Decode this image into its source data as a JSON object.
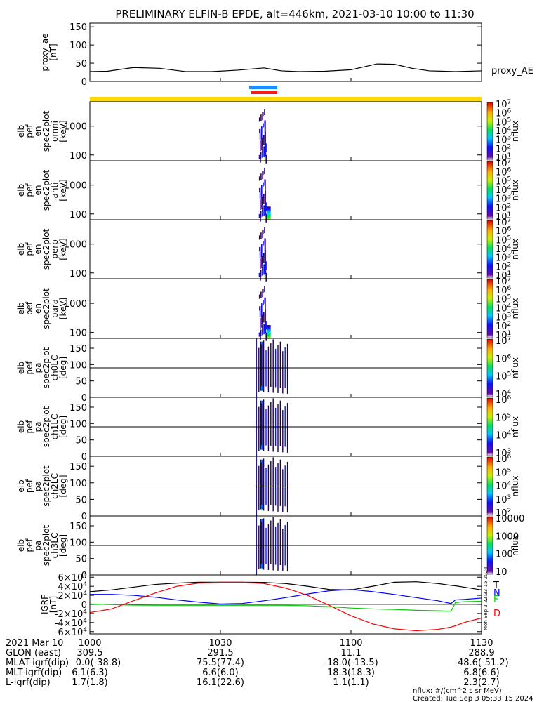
{
  "title": "PRELIMINARY ELFIN-B EPDE, alt=446km, 2021-03-10 10:00 to 11:30",
  "footer": {
    "units": "nflux: #/(cm^2 s sr MeV)",
    "created": "Created: Tue Sep  3 05:33:15 2024",
    "side_stamp": "Mon Sep  2 22:33:15 2024"
  },
  "colors": {
    "status_bar": "#ffd800",
    "bar_blue": "#1a8fff",
    "bar_red": "#ff1a1a",
    "grf_T": "#000000",
    "grf_N": "#0000ff",
    "grf_E": "#00d000",
    "grf_D": "#ff0000"
  },
  "xaxis": {
    "ticks": [
      "1000",
      "1030",
      "1100",
      "1130"
    ],
    "minutes": [
      0,
      30,
      60,
      90
    ],
    "range_minutes": [
      0,
      90
    ]
  },
  "orbit_table": {
    "rows": [
      {
        "label": "2021 Mar 10",
        "values": [
          "1000",
          "1030",
          "1100",
          "1130"
        ]
      },
      {
        "label": "GLON (east)",
        "values": [
          "309.5",
          "291.5",
          "11.1",
          "288.9"
        ]
      },
      {
        "label": "MLAT-igrf(dip)",
        "values": [
          "0.0(-38.8)",
          "75.5(77.4)",
          "-18.0(-13.5)",
          "-48.6(-51.2)"
        ]
      },
      {
        "label": "MLT-igrf(dip)",
        "values": [
          "6.1(6.3)",
          "6.6(6.0)",
          "18.3(18.3)",
          "6.8(6.6)"
        ]
      },
      {
        "label": "L-igrf(dip)",
        "values": [
          "1.7(1.8)",
          "16.1(22.6)",
          "1.1(1.1)",
          "2.3(2.7)"
        ]
      }
    ]
  },
  "chart_data": [
    {
      "type": "line",
      "panel": "proxy_ae",
      "ylabel": [
        "proxy_ae",
        "[nT]"
      ],
      "ylim": [
        0,
        160
      ],
      "yticks": [
        "0",
        "50",
        "100",
        "150"
      ],
      "ytick_values": [
        0,
        50,
        100,
        150
      ],
      "series_label": "proxy_AE",
      "x_minutes": [
        0,
        4,
        10,
        16,
        22,
        28,
        34,
        40,
        44,
        48,
        54,
        60,
        66,
        70,
        74,
        78,
        84,
        90
      ],
      "values": [
        27,
        28,
        38,
        36,
        27,
        27,
        31,
        37,
        29,
        27,
        28,
        32,
        48,
        47,
        36,
        29,
        27,
        29
      ]
    },
    {
      "type": "heatmap",
      "panel": "omni",
      "ylabel": [
        "elb",
        "pef",
        "en",
        "spec2plot",
        "omni",
        "[keV]"
      ],
      "ylim": [
        63,
        7000
      ],
      "log": true,
      "yticks": [
        "100",
        "1000"
      ],
      "ytick_values": [
        100,
        1000
      ],
      "colorbar": {
        "ticks": [
          "10<sup>1</sup>",
          "10<sup>2</sup>",
          "10<sup>3</sup>",
          "10<sup>4</sup>",
          "10<sup>5</sup>",
          "10<sup>6</sup>",
          "10<sup>7</sup>"
        ],
        "label": "nflux"
      },
      "burst_minutes": [
        38.5,
        40.5
      ]
    },
    {
      "type": "heatmap",
      "panel": "anti",
      "ylabel": [
        "elb",
        "pef",
        "en",
        "spec2plot",
        "anti",
        "[keV]"
      ],
      "ylim": [
        63,
        7000
      ],
      "log": true,
      "yticks": [
        "100",
        "1000"
      ],
      "ytick_values": [
        100,
        1000
      ],
      "colorbar": {
        "ticks": [
          "10<sup>1</sup>",
          "10<sup>2</sup>",
          "10<sup>3</sup>",
          "10<sup>4</sup>",
          "10<sup>5</sup>",
          "10<sup>6</sup>",
          "10<sup>7</sup>"
        ],
        "label": "nflux"
      },
      "burst_minutes": [
        38.5,
        40.5
      ]
    },
    {
      "type": "heatmap",
      "panel": "perp",
      "ylabel": [
        "elb",
        "pef",
        "en",
        "spec2plot",
        "perp",
        "[keV]"
      ],
      "ylim": [
        63,
        7000
      ],
      "log": true,
      "yticks": [
        "100",
        "1000"
      ],
      "ytick_values": [
        100,
        1000
      ],
      "colorbar": {
        "ticks": [
          "10<sup>1</sup>",
          "10<sup>2</sup>",
          "10<sup>3</sup>",
          "10<sup>4</sup>",
          "10<sup>5</sup>",
          "10<sup>6</sup>",
          "10<sup>7</sup>"
        ],
        "label": "nflux"
      },
      "burst_minutes": [
        38.5,
        40.5
      ]
    },
    {
      "type": "heatmap",
      "panel": "para",
      "ylabel": [
        "elb",
        "pef",
        "en",
        "spec2plot",
        "para",
        "[keV]"
      ],
      "ylim": [
        63,
        7000
      ],
      "log": true,
      "yticks": [
        "100",
        "1000"
      ],
      "ytick_values": [
        100,
        1000
      ],
      "colorbar": {
        "ticks": [
          "10<sup>1</sup>",
          "10<sup>2</sup>",
          "10<sup>3</sup>",
          "10<sup>4</sup>",
          "10<sup>5</sup>",
          "10<sup>6</sup>",
          "10<sup>7</sup>"
        ],
        "label": "nflux"
      },
      "burst_minutes": [
        38.5,
        40.5
      ]
    },
    {
      "type": "heatmap",
      "panel": "ch0LC",
      "ylabel": [
        "elb",
        "pef",
        "pa",
        "spec2plot",
        "ch0LC",
        "[deg]"
      ],
      "ylim": [
        0,
        180
      ],
      "yticks": [
        "0",
        "50",
        "100",
        "150"
      ],
      "ytick_values": [
        0,
        50,
        100,
        150
      ],
      "hline": 90,
      "colorbar": {
        "ticks": [
          "10<sup>4</sup>",
          "10<sup>5</sup>",
          "10<sup>6</sup>",
          "10<sup>7</sup>"
        ],
        "label": "nflux"
      },
      "burst_minutes": [
        38.5,
        40.5
      ]
    },
    {
      "type": "heatmap",
      "panel": "ch1LC",
      "ylabel": [
        "elb",
        "pef",
        "pa",
        "spec2plot",
        "ch1LC",
        "[deg]"
      ],
      "ylim": [
        0,
        180
      ],
      "yticks": [
        "0",
        "50",
        "100",
        "150"
      ],
      "ytick_values": [
        0,
        50,
        100,
        150
      ],
      "hline": 90,
      "colorbar": {
        "ticks": [
          "10<sup>3</sup>",
          "10<sup>4</sup>",
          "10<sup>5</sup>",
          "10<sup>6</sup>"
        ],
        "label": "nflux"
      },
      "burst_minutes": [
        38.5,
        40.5
      ]
    },
    {
      "type": "heatmap",
      "panel": "ch2LC",
      "ylabel": [
        "elb",
        "pef",
        "pa",
        "spec2plot",
        "ch2LC",
        "[deg]"
      ],
      "ylim": [
        0,
        180
      ],
      "yticks": [
        "0",
        "50",
        "100",
        "150"
      ],
      "ytick_values": [
        0,
        50,
        100,
        150
      ],
      "hline": 90,
      "colorbar": {
        "ticks": [
          "10<sup>2</sup>",
          "10<sup>3</sup>",
          "10<sup>4</sup>",
          "10<sup>5</sup>",
          "10<sup>6</sup>"
        ],
        "label": "nflux"
      },
      "burst_minutes": [
        38.5,
        40.5
      ]
    },
    {
      "type": "heatmap",
      "panel": "ch3LC",
      "ylabel": [
        "elb",
        "pef",
        "pa",
        "spec2plot",
        "ch3LC",
        "[deg]"
      ],
      "ylim": [
        0,
        180
      ],
      "yticks": [
        "0",
        "50",
        "100",
        "150"
      ],
      "ytick_values": [
        0,
        50,
        100,
        150
      ],
      "hline": 90,
      "colorbar": {
        "ticks": [
          "10",
          "100",
          "1000",
          "10000"
        ],
        "label": "nflux"
      },
      "burst_minutes": [
        38.5,
        40.5
      ]
    },
    {
      "type": "line",
      "panel": "igrf",
      "ylabel": [
        "IGRF",
        "[nT]"
      ],
      "ylim": [
        -65000,
        65000
      ],
      "yticks": [
        "-6×10<sup>4</sup>",
        "-4×10<sup>4</sup>",
        "-2×10<sup>4</sup>",
        "0",
        "2×10<sup>4</sup>",
        "4×10<sup>4</sup>",
        "6×10<sup>4</sup>"
      ],
      "ytick_values": [
        -60000,
        -40000,
        -20000,
        0,
        20000,
        40000,
        60000
      ],
      "x_minutes": [
        0,
        5,
        10,
        15,
        20,
        25,
        30,
        35,
        40,
        45,
        50,
        55,
        60,
        65,
        70,
        75,
        80,
        83,
        84,
        86,
        90
      ],
      "series": [
        {
          "name": "T",
          "values": [
            28000,
            32000,
            38000,
            44000,
            47000,
            49000,
            49000,
            49000,
            48500,
            46000,
            40000,
            33000,
            32000,
            40000,
            49000,
            50000,
            46000,
            42000,
            41000,
            38000,
            32000
          ]
        },
        {
          "name": "N",
          "values": [
            22000,
            22000,
            20000,
            16000,
            10000,
            5000,
            1000,
            2000,
            8000,
            15000,
            23000,
            30000,
            33000,
            28000,
            22000,
            15000,
            8000,
            2000,
            10000,
            11000,
            14000
          ]
        },
        {
          "name": "E",
          "values": [
            1000,
            -500,
            -1500,
            -2000,
            -2000,
            -2000,
            -2000,
            -2000,
            -2000,
            -2000,
            -3000,
            -5000,
            -8000,
            -10000,
            -11000,
            -13000,
            -14000,
            -15000,
            4000,
            6000,
            7000
          ]
        },
        {
          "name": "D",
          "values": [
            -18000,
            -10000,
            8000,
            25000,
            40000,
            47000,
            49000,
            49000,
            46000,
            36000,
            20000,
            -2000,
            -25000,
            -43000,
            -54000,
            -58000,
            -55000,
            -50000,
            -47000,
            -40000,
            -30000
          ]
        }
      ]
    }
  ]
}
